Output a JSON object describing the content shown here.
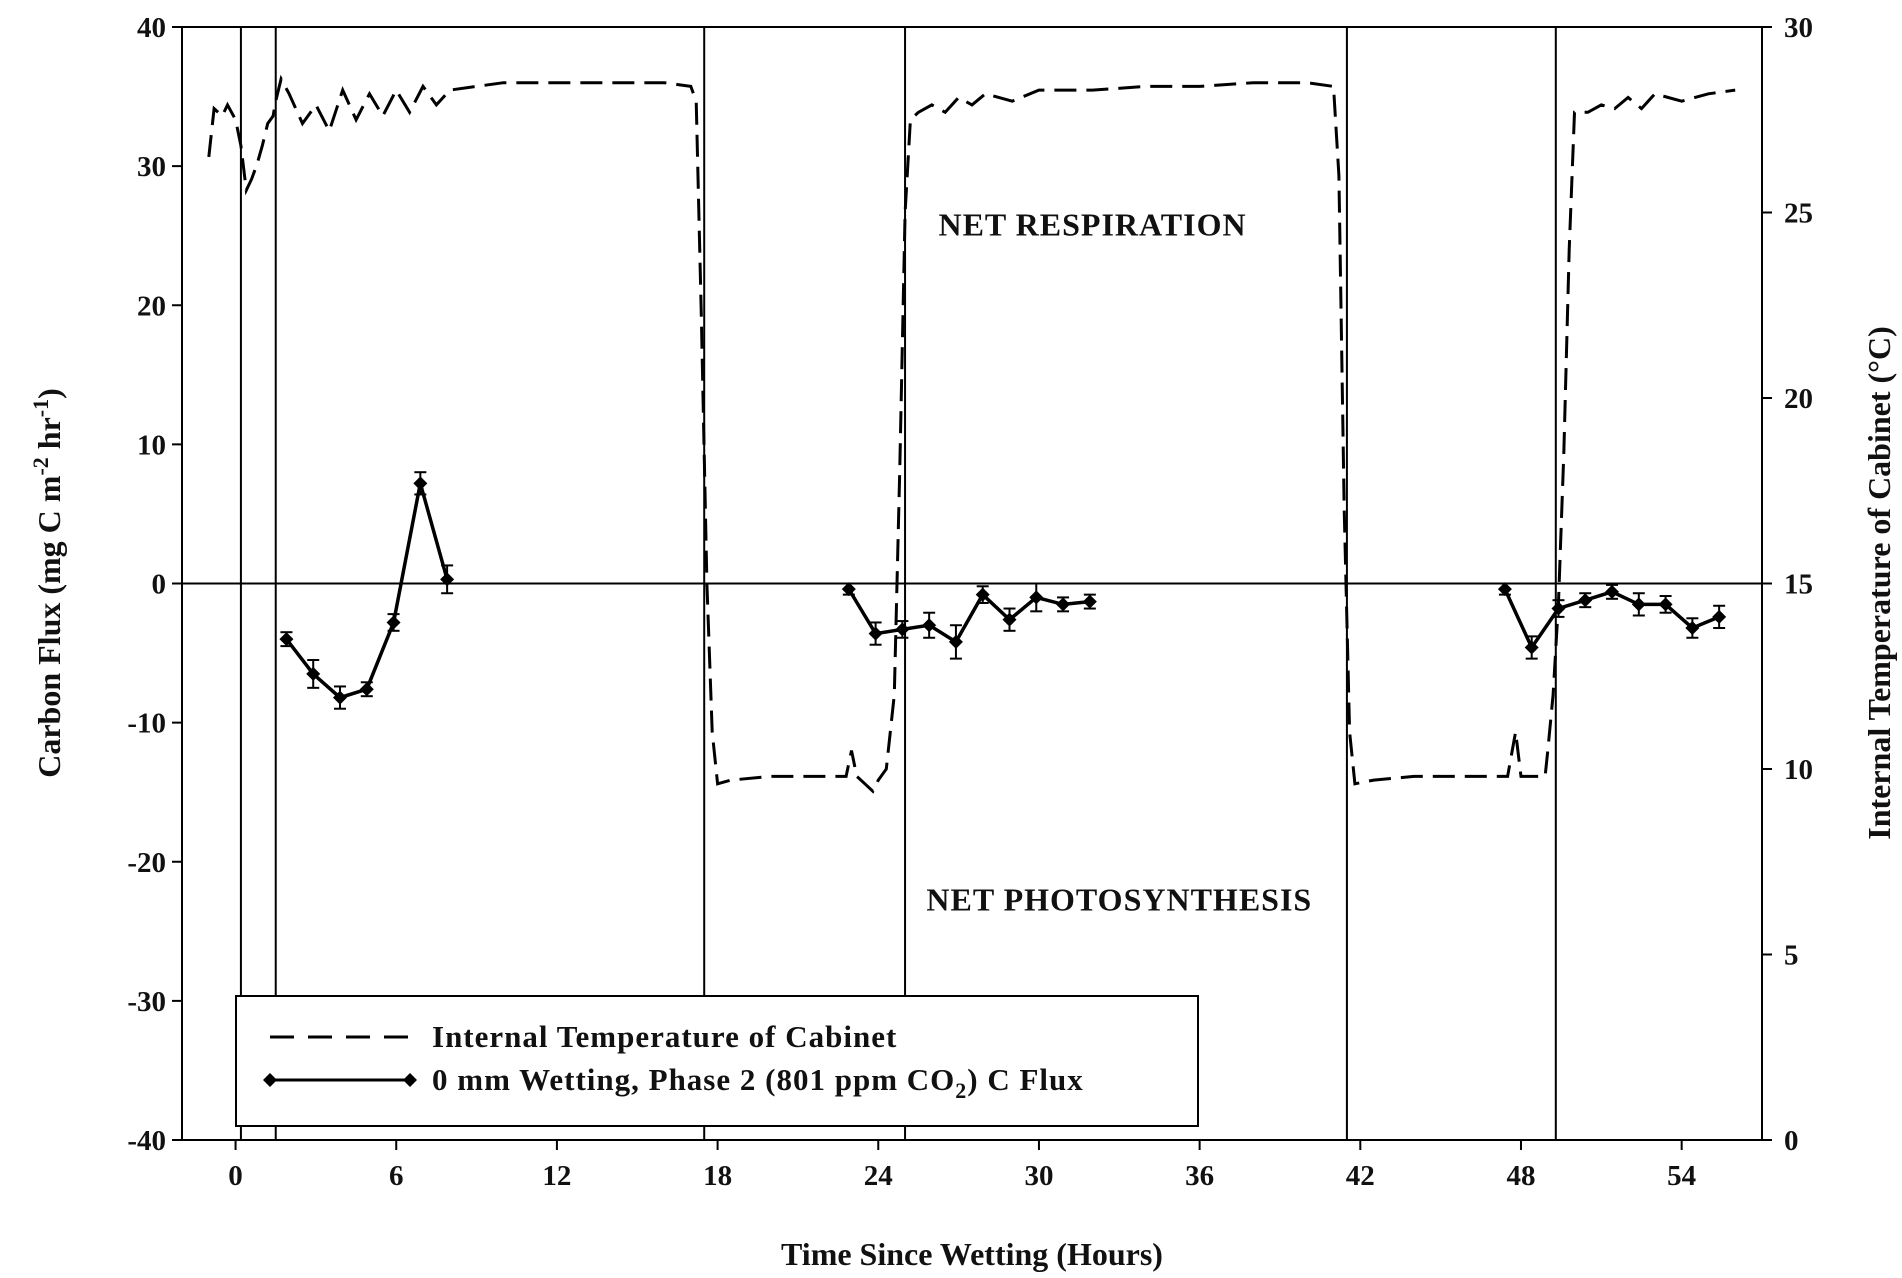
{
  "chart_data": {
    "type": "line",
    "xlabel": "Time Since Wetting (Hours)",
    "ylabel_left": {
      "main": "Carbon Flux (mg C m",
      "sup1": "-2",
      "mid": " hr",
      "sup2": "-1",
      "end": ")"
    },
    "ylabel_right": "Internal Temperature of Cabinet (°C)",
    "x_range": [
      -2,
      57
    ],
    "y_left_range": [
      -40,
      40
    ],
    "y_right_range": [
      0,
      30
    ],
    "x_ticks": [
      0,
      6,
      12,
      18,
      24,
      30,
      36,
      42,
      48,
      54
    ],
    "x_tick_labels": [
      "0",
      "6",
      "12",
      "18",
      "24",
      "30",
      "36",
      "42",
      "48",
      "54"
    ],
    "y_left_ticks": [
      -40,
      -30,
      -20,
      -10,
      0,
      10,
      20,
      30,
      40
    ],
    "y_left_tick_labels": [
      "-40",
      "-30",
      "-20",
      "-10",
      "0",
      "10",
      "20",
      "30",
      "40"
    ],
    "y_right_ticks": [
      0,
      5,
      10,
      15,
      20,
      25,
      30
    ],
    "y_right_tick_labels": [
      "0",
      "5",
      "10",
      "15",
      "20",
      "25",
      "30"
    ],
    "vertical_lines_x": [
      0.2,
      1.5,
      17.5,
      25.0,
      41.5,
      49.3
    ],
    "zero_line_y": 0,
    "annotations": [
      {
        "text": "NET RESPIRATION",
        "x": 32.0,
        "y": 25.0
      },
      {
        "text": "NET PHOTOSYNTHESIS",
        "x": 33.0,
        "y": -23.5
      }
    ],
    "legend": {
      "temp_label": "Internal Temperature of Cabinet",
      "flux_label_pre": "0 mm Wetting, Phase 2 (801 ppm CO",
      "flux_label_sub": "2",
      "flux_label_post": ") C Flux",
      "position": "bottom-left"
    },
    "series": [
      {
        "name": "Internal Temperature of Cabinet",
        "axis": "right",
        "style": "dashed",
        "points": [
          [
            -1.0,
            26.5
          ],
          [
            -0.8,
            27.8
          ],
          [
            -0.5,
            27.6
          ],
          [
            -0.3,
            27.9
          ],
          [
            0.0,
            27.5
          ],
          [
            0.2,
            26.8
          ],
          [
            0.4,
            25.6
          ],
          [
            0.6,
            25.9
          ],
          [
            0.8,
            26.3
          ],
          [
            1.0,
            26.8
          ],
          [
            1.2,
            27.4
          ],
          [
            1.4,
            27.6
          ],
          [
            1.5,
            28.0
          ],
          [
            1.7,
            28.6
          ],
          [
            2.0,
            28.2
          ],
          [
            2.5,
            27.4
          ],
          [
            3.0,
            27.9
          ],
          [
            3.5,
            27.2
          ],
          [
            4.0,
            28.3
          ],
          [
            4.5,
            27.5
          ],
          [
            5.0,
            28.2
          ],
          [
            5.5,
            27.6
          ],
          [
            6.0,
            28.3
          ],
          [
            6.5,
            27.7
          ],
          [
            7.0,
            28.4
          ],
          [
            7.5,
            27.9
          ],
          [
            8.0,
            28.3
          ],
          [
            9.0,
            28.4
          ],
          [
            10.0,
            28.5
          ],
          [
            12.0,
            28.5
          ],
          [
            14.0,
            28.5
          ],
          [
            16.0,
            28.5
          ],
          [
            17.0,
            28.4
          ],
          [
            17.2,
            28.0
          ],
          [
            17.4,
            22.0
          ],
          [
            17.6,
            15.0
          ],
          [
            17.8,
            11.0
          ],
          [
            18.0,
            9.6
          ],
          [
            18.5,
            9.7
          ],
          [
            20.0,
            9.8
          ],
          [
            22.0,
            9.8
          ],
          [
            22.8,
            9.8
          ],
          [
            23.0,
            10.5
          ],
          [
            23.2,
            9.8
          ],
          [
            23.5,
            9.6
          ],
          [
            23.8,
            9.4
          ],
          [
            24.0,
            9.7
          ],
          [
            24.3,
            10.0
          ],
          [
            24.6,
            12.0
          ],
          [
            24.8,
            18.0
          ],
          [
            25.0,
            25.0
          ],
          [
            25.2,
            27.5
          ],
          [
            25.5,
            27.7
          ],
          [
            26.0,
            27.9
          ],
          [
            26.5,
            27.7
          ],
          [
            27.0,
            28.1
          ],
          [
            27.5,
            27.9
          ],
          [
            28.0,
            28.2
          ],
          [
            29.0,
            28.0
          ],
          [
            30.0,
            28.3
          ],
          [
            31.0,
            28.3
          ],
          [
            32.0,
            28.3
          ],
          [
            34.0,
            28.4
          ],
          [
            36.0,
            28.4
          ],
          [
            38.0,
            28.5
          ],
          [
            40.0,
            28.5
          ],
          [
            41.0,
            28.4
          ],
          [
            41.2,
            26.0
          ],
          [
            41.4,
            17.0
          ],
          [
            41.6,
            11.0
          ],
          [
            41.8,
            9.6
          ],
          [
            42.5,
            9.7
          ],
          [
            44.0,
            9.8
          ],
          [
            46.0,
            9.8
          ],
          [
            47.5,
            9.8
          ],
          [
            47.8,
            11.0
          ],
          [
            48.0,
            9.8
          ],
          [
            48.5,
            9.8
          ],
          [
            48.9,
            9.8
          ],
          [
            49.0,
            10.5
          ],
          [
            49.2,
            12.0
          ],
          [
            49.4,
            14.5
          ],
          [
            49.6,
            18.5
          ],
          [
            49.8,
            24.0
          ],
          [
            50.0,
            27.7
          ],
          [
            50.5,
            27.7
          ],
          [
            51.0,
            27.9
          ],
          [
            51.5,
            27.8
          ],
          [
            52.0,
            28.1
          ],
          [
            52.5,
            27.8
          ],
          [
            53.0,
            28.2
          ],
          [
            54.0,
            28.0
          ],
          [
            55.0,
            28.2
          ],
          [
            56.0,
            28.3
          ]
        ]
      },
      {
        "name": "0 mm Wetting, Phase 2 (801 ppm CO2) C Flux",
        "axis": "left",
        "style": "solid-markers",
        "points": [
          [
            1.9,
            -4.0
          ],
          [
            2.9,
            -6.5
          ],
          [
            3.9,
            -8.2
          ],
          [
            4.9,
            -7.6
          ],
          [
            5.9,
            -2.8
          ],
          [
            6.9,
            7.2
          ],
          [
            7.9,
            0.3
          ],
          [
            22.9,
            -0.4
          ],
          [
            23.9,
            -3.6
          ],
          [
            24.9,
            -3.3
          ],
          [
            25.9,
            -3.0
          ],
          [
            26.9,
            -4.2
          ],
          [
            27.9,
            -0.8
          ],
          [
            28.9,
            -2.6
          ],
          [
            29.9,
            -1.0
          ],
          [
            30.9,
            -1.5
          ],
          [
            31.9,
            -1.3
          ],
          [
            47.4,
            -0.4
          ],
          [
            48.4,
            -4.6
          ],
          [
            49.4,
            -1.8
          ],
          [
            50.4,
            -1.2
          ],
          [
            51.4,
            -0.6
          ],
          [
            52.4,
            -1.5
          ],
          [
            53.4,
            -1.5
          ],
          [
            54.4,
            -3.2
          ],
          [
            55.4,
            -2.4
          ]
        ],
        "error": [
          0.5,
          1.0,
          0.8,
          0.5,
          0.6,
          0.8,
          1.0,
          0.4,
          0.8,
          0.6,
          0.9,
          1.2,
          0.6,
          0.8,
          1.0,
          0.5,
          0.5,
          0.4,
          0.8,
          0.6,
          0.5,
          0.5,
          0.8,
          0.6,
          0.7,
          0.8
        ]
      }
    ]
  }
}
